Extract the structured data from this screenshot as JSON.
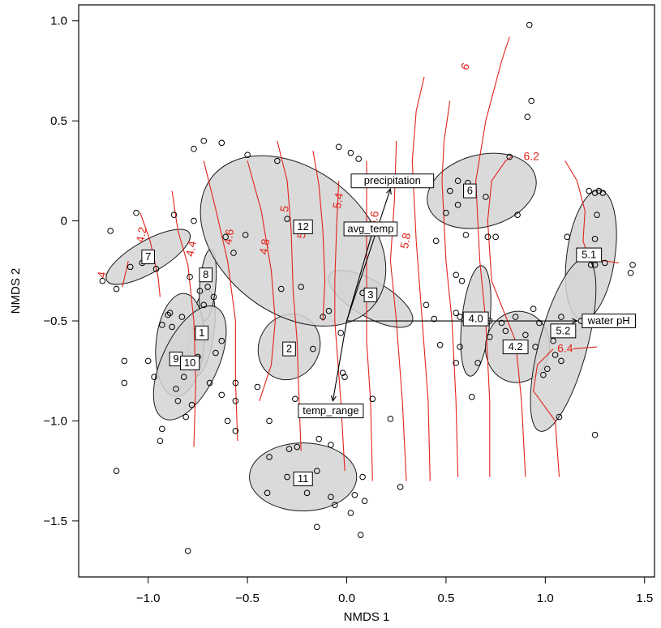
{
  "chart_data": {
    "type": "scatter",
    "xlabel": "NMDS 1",
    "ylabel": "NMDS 2",
    "xlim": [
      -1.35,
      1.55
    ],
    "ylim": [
      -1.78,
      1.08
    ],
    "xticks": [
      -1.0,
      -0.5,
      0.0,
      0.5,
      1.0,
      1.5
    ],
    "xtick_labels": [
      "−1.0",
      "−0.5",
      "0.0",
      "0.5",
      "1.0",
      "1.5"
    ],
    "yticks": [
      -1.5,
      -1.0,
      -0.5,
      0.0,
      0.5,
      1.0
    ],
    "ytick_labels": [
      "−1.5",
      "−1.0",
      "−0.5",
      "0",
      "0.5",
      "1.0"
    ],
    "grid": false,
    "colors": {
      "points": "#000000",
      "ellipse_fill": "#d3d3d3",
      "ellipse_stroke": "#1a1a1a",
      "contour": "#e2231a",
      "vector": "#000000"
    },
    "points": [
      [
        0.92,
        0.98
      ],
      [
        0.93,
        0.6
      ],
      [
        0.91,
        0.52
      ],
      [
        -0.72,
        0.4
      ],
      [
        -0.63,
        0.39
      ],
      [
        -0.77,
        0.36
      ],
      [
        -0.04,
        0.37
      ],
      [
        0.02,
        0.34
      ],
      [
        0.06,
        0.31
      ],
      [
        -0.5,
        0.33
      ],
      [
        -0.35,
        0.3
      ],
      [
        0.82,
        0.32
      ],
      [
        0.56,
        0.2
      ],
      [
        0.61,
        0.19
      ],
      [
        0.52,
        0.15
      ],
      [
        0.7,
        0.12
      ],
      [
        0.56,
        0.08
      ],
      [
        1.22,
        0.15
      ],
      [
        1.27,
        0.15
      ],
      [
        1.29,
        0.14
      ],
      [
        1.25,
        0.14
      ],
      [
        1.26,
        0.03
      ],
      [
        0.5,
        0.04
      ],
      [
        0.86,
        0.03
      ],
      [
        -0.77,
        -0.0
      ],
      [
        -0.87,
        0.03
      ],
      [
        -0.3,
        0.01
      ],
      [
        -0.51,
        -0.07
      ],
      [
        -1.06,
        0.04
      ],
      [
        -1.19,
        -0.05
      ],
      [
        0.45,
        -0.1
      ],
      [
        0.6,
        -0.07
      ],
      [
        0.71,
        -0.08
      ],
      [
        0.75,
        -0.08
      ],
      [
        1.11,
        -0.08
      ],
      [
        1.25,
        -0.09
      ],
      [
        -1.03,
        -0.21
      ],
      [
        -1.09,
        -0.23
      ],
      [
        -0.96,
        -0.24
      ],
      [
        -0.79,
        -0.28
      ],
      [
        -0.61,
        -0.08
      ],
      [
        -0.57,
        -0.16
      ],
      [
        1.23,
        -0.22
      ],
      [
        1.25,
        -0.22
      ],
      [
        1.3,
        -0.21
      ],
      [
        1.44,
        -0.22
      ],
      [
        1.43,
        -0.26
      ],
      [
        0.55,
        -0.27
      ],
      [
        0.58,
        -0.3
      ],
      [
        -0.7,
        -0.33
      ],
      [
        -0.74,
        -0.35
      ],
      [
        -0.67,
        -0.38
      ],
      [
        -0.23,
        -0.33
      ],
      [
        -0.33,
        -0.34
      ],
      [
        0.12,
        -0.36
      ],
      [
        0.08,
        -0.36
      ],
      [
        -1.16,
        -0.34
      ],
      [
        -1.23,
        -0.3
      ],
      [
        0.4,
        -0.42
      ],
      [
        0.55,
        -0.46
      ],
      [
        0.44,
        -0.49
      ],
      [
        0.57,
        -0.48
      ],
      [
        0.62,
        -0.48
      ],
      [
        0.6,
        -0.5
      ],
      [
        0.72,
        -0.5
      ],
      [
        0.78,
        -0.51
      ],
      [
        0.85,
        -0.48
      ],
      [
        0.94,
        -0.44
      ],
      [
        0.97,
        -0.51
      ],
      [
        1.08,
        -0.48
      ],
      [
        1.18,
        -0.5
      ],
      [
        1.24,
        -0.5
      ],
      [
        -0.72,
        -0.42
      ],
      [
        -0.83,
        -0.48
      ],
      [
        -0.88,
        -0.53
      ],
      [
        -0.9,
        -0.47
      ],
      [
        -0.89,
        -0.46
      ],
      [
        -0.93,
        -0.52
      ],
      [
        -0.75,
        -0.54
      ],
      [
        -0.63,
        -0.6
      ],
      [
        -0.28,
        -0.62
      ],
      [
        -0.17,
        -0.64
      ],
      [
        -0.03,
        -0.56
      ],
      [
        0.47,
        -0.62
      ],
      [
        0.57,
        -0.63
      ],
      [
        0.72,
        -0.58
      ],
      [
        0.8,
        -0.55
      ],
      [
        0.9,
        -0.57
      ],
      [
        0.95,
        -0.63
      ],
      [
        1.04,
        -0.6
      ],
      [
        -1.0,
        -0.7
      ],
      [
        -1.12,
        -0.7
      ],
      [
        -1.12,
        -0.81
      ],
      [
        -0.66,
        -0.66
      ],
      [
        -0.75,
        -0.68
      ],
      [
        -0.97,
        -0.78
      ],
      [
        -0.86,
        -0.84
      ],
      [
        -0.82,
        -0.78
      ],
      [
        -0.69,
        -0.81
      ],
      [
        -0.63,
        -0.87
      ],
      [
        -0.56,
        -0.81
      ],
      [
        -0.56,
        -0.9
      ],
      [
        -0.45,
        -0.83
      ],
      [
        -0.02,
        -0.76
      ],
      [
        -0.01,
        -0.78
      ],
      [
        0.55,
        -0.71
      ],
      [
        0.66,
        -0.71
      ],
      [
        0.63,
        -0.88
      ],
      [
        0.99,
        -0.77
      ],
      [
        1.01,
        -0.74
      ],
      [
        1.05,
        -0.67
      ],
      [
        1.08,
        -0.7
      ],
      [
        -0.93,
        -1.04
      ],
      [
        -0.94,
        -1.1
      ],
      [
        -0.81,
        -0.98
      ],
      [
        -0.85,
        -0.9
      ],
      [
        -0.78,
        -0.92
      ],
      [
        -0.6,
        -1.0
      ],
      [
        -0.56,
        -1.05
      ],
      [
        -0.39,
        -1.0
      ],
      [
        -0.26,
        -0.89
      ],
      [
        -0.25,
        -1.13
      ],
      [
        -0.29,
        -1.14
      ],
      [
        -0.14,
        -1.09
      ],
      [
        -0.08,
        -1.12
      ],
      [
        0.13,
        -0.89
      ],
      [
        0.22,
        -0.99
      ],
      [
        1.07,
        -0.98
      ],
      [
        1.25,
        -1.07
      ],
      [
        -0.39,
        -1.18
      ],
      [
        -0.4,
        -1.36
      ],
      [
        -0.3,
        -1.28
      ],
      [
        -0.15,
        -1.25
      ],
      [
        -0.2,
        -1.36
      ],
      [
        -0.08,
        -1.38
      ],
      [
        0.08,
        -1.28
      ],
      [
        0.09,
        -1.4
      ],
      [
        0.04,
        -1.37
      ],
      [
        0.02,
        -1.46
      ],
      [
        -0.06,
        -1.42
      ],
      [
        -0.15,
        -1.53
      ],
      [
        0.07,
        -1.57
      ],
      [
        0.27,
        -1.33
      ],
      [
        -1.16,
        -1.25
      ],
      [
        -0.8,
        -1.65
      ],
      [
        -0.12,
        -0.48
      ],
      [
        -0.09,
        -0.45
      ]
    ],
    "groups": [
      {
        "label": "1",
        "cx": -0.73,
        "cy": -0.56,
        "rx": 0.22,
        "ry": 0.06,
        "angle": 82,
        "lx": -0.73,
        "ly": -0.56
      },
      {
        "label": "2",
        "cx": -0.29,
        "cy": -0.63,
        "rx": 0.17,
        "ry": 0.15,
        "angle": 60,
        "lx": -0.29,
        "ly": -0.64
      },
      {
        "label": "3",
        "cx": 0.12,
        "cy": -0.39,
        "rx": 0.24,
        "ry": 0.09,
        "angle": -30,
        "lx": 0.12,
        "ly": -0.37
      },
      {
        "label": "4.0",
        "cx": 0.65,
        "cy": -0.5,
        "rx": 0.28,
        "ry": 0.07,
        "angle": 84,
        "lx": 0.65,
        "ly": -0.49
      },
      {
        "label": "4.2",
        "cx": 0.86,
        "cy": -0.63,
        "rx": 0.18,
        "ry": 0.16,
        "angle": 82,
        "lx": 0.85,
        "ly": -0.63
      },
      {
        "label": "5.1",
        "cx": 1.23,
        "cy": -0.17,
        "rx": 0.33,
        "ry": 0.12,
        "angle": 82,
        "lx": 1.22,
        "ly": -0.17
      },
      {
        "label": "5.2",
        "cx": 1.09,
        "cy": -0.62,
        "rx": 0.45,
        "ry": 0.12,
        "angle": 75,
        "lx": 1.09,
        "ly": -0.55
      },
      {
        "label": "6",
        "cx": 0.68,
        "cy": 0.15,
        "rx": 0.28,
        "ry": 0.18,
        "angle": 15,
        "lx": 0.62,
        "ly": 0.15
      },
      {
        "label": "7",
        "cx": -1.0,
        "cy": -0.18,
        "rx": 0.24,
        "ry": 0.08,
        "angle": 30,
        "lx": -1.0,
        "ly": -0.18
      },
      {
        "label": "8",
        "cx": -0.7,
        "cy": -0.32,
        "rx": 0.18,
        "ry": 0.04,
        "angle": 85,
        "lx": -0.71,
        "ly": -0.27
      },
      {
        "label": "9",
        "cx": -0.84,
        "cy": -0.62,
        "rx": 0.26,
        "ry": 0.12,
        "angle": 85,
        "lx": -0.86,
        "ly": -0.69
      },
      {
        "label": "10",
        "cx": -0.79,
        "cy": -0.71,
        "rx": 0.31,
        "ry": 0.14,
        "angle": 65,
        "lx": -0.79,
        "ly": -0.71
      },
      {
        "label": "11",
        "cx": -0.22,
        "cy": -1.28,
        "rx": 0.27,
        "ry": 0.17,
        "angle": 0,
        "lx": -0.22,
        "ly": -1.29
      },
      {
        "label": "12",
        "cx": -0.27,
        "cy": -0.1,
        "rx": 0.52,
        "ry": 0.36,
        "angle": -38,
        "lx": -0.22,
        "ly": -0.03
      }
    ],
    "vectors": [
      {
        "label": "precipitation",
        "x": 0.22,
        "y": 0.16,
        "lx": 0.23,
        "ly": 0.2
      },
      {
        "label": "avg_temp",
        "x": 0.14,
        "y": -0.02,
        "lx": 0.12,
        "ly": -0.04
      },
      {
        "label": "temp_range",
        "x": -0.07,
        "y": -0.9,
        "lx": -0.08,
        "ly": -0.95
      },
      {
        "label": "water pH",
        "x": 1.16,
        "y": -0.5,
        "lx": 1.32,
        "ly": -0.5
      }
    ],
    "vector_origin": [
      0.0,
      -0.5
    ],
    "contours": [
      {
        "label": "4",
        "pts": [
          [
            -1.13,
            -0.33
          ],
          [
            -1.1,
            -0.2
          ]
        ],
        "lx": -1.23,
        "ly": -0.27,
        "angle": -80
      },
      {
        "label": "4.2",
        "pts": [
          [
            -0.94,
            -0.38
          ],
          [
            -0.95,
            -0.28
          ],
          [
            -0.99,
            -0.1
          ],
          [
            -1.04,
            0.04
          ]
        ],
        "lx": -1.03,
        "ly": -0.07,
        "angle": -80
      },
      {
        "label": "4.4",
        "pts": [
          [
            -0.77,
            -1.13
          ],
          [
            -0.76,
            -0.8
          ],
          [
            -0.77,
            -0.5
          ],
          [
            -0.8,
            -0.22
          ],
          [
            -0.85,
            -0.05
          ],
          [
            -0.88,
            0.15
          ]
        ],
        "lx": -0.78,
        "ly": -0.14,
        "angle": -80
      },
      {
        "label": "4.6",
        "pts": [
          [
            -0.55,
            -1.1
          ],
          [
            -0.56,
            -0.8
          ],
          [
            -0.56,
            -0.5
          ],
          [
            -0.6,
            -0.2
          ],
          [
            -0.66,
            0.06
          ],
          [
            -0.72,
            0.3
          ]
        ],
        "lx": -0.59,
        "ly": -0.08,
        "angle": -80
      },
      {
        "label": "4.8",
        "pts": [
          [
            -0.44,
            -0.9
          ],
          [
            -0.38,
            -0.72
          ],
          [
            -0.36,
            -0.5
          ],
          [
            -0.38,
            -0.25
          ],
          [
            -0.43,
            0.05
          ],
          [
            -0.5,
            0.3
          ]
        ],
        "lx": -0.41,
        "ly": -0.13,
        "angle": -80
      },
      {
        "label": "5",
        "pts": [
          [
            -0.23,
            -1.15
          ],
          [
            -0.24,
            -0.9
          ],
          [
            -0.25,
            -0.6
          ],
          [
            -0.27,
            -0.35
          ],
          [
            -0.28,
            -0.05
          ],
          [
            -0.3,
            0.2
          ],
          [
            -0.35,
            0.4
          ]
        ],
        "lx": -0.31,
        "ly": 0.06,
        "angle": -80
      },
      {
        "label": "5.2",
        "pts": [
          [
            -0.12,
            -0.5
          ],
          [
            -0.11,
            -0.3
          ],
          [
            -0.12,
            -0.05
          ],
          [
            -0.14,
            0.18
          ],
          [
            -0.17,
            0.35
          ]
        ],
        "lx": -0.22,
        "ly": -0.05,
        "angle": -80
      },
      {
        "label": "5.4",
        "pts": [
          [
            -0.01,
            -1.25
          ],
          [
            -0.03,
            -0.9
          ],
          [
            -0.06,
            -0.5
          ],
          [
            -0.06,
            -0.3
          ],
          [
            -0.05,
            0.0
          ],
          [
            -0.04,
            0.2
          ]
        ],
        "lx": -0.04,
        "ly": 0.1,
        "angle": -80
      },
      {
        "label": "5.6",
        "pts": [
          [
            0.13,
            -1.3
          ],
          [
            0.12,
            -0.9
          ],
          [
            0.1,
            -0.6
          ],
          [
            0.1,
            -0.3
          ],
          [
            0.1,
            0.0
          ],
          [
            0.1,
            0.3
          ]
        ],
        "lx": 0.14,
        "ly": 0.01,
        "angle": -80
      },
      {
        "label": "5.8",
        "pts": [
          [
            0.3,
            -1.3
          ],
          [
            0.28,
            -0.9
          ],
          [
            0.25,
            -0.5
          ],
          [
            0.22,
            -0.2
          ],
          [
            0.24,
            0.1
          ],
          [
            0.25,
            0.4
          ]
        ],
        "lx": 0.3,
        "ly": -0.1,
        "angle": -80
      },
      {
        "label": "",
        "pts": [
          [
            0.42,
            -1.3
          ],
          [
            0.41,
            -0.9
          ],
          [
            0.38,
            -0.5
          ],
          [
            0.35,
            -0.1
          ],
          [
            0.33,
            0.3
          ],
          [
            0.35,
            0.55
          ],
          [
            0.39,
            0.72
          ]
        ],
        "lx": 0,
        "ly": 0,
        "angle": 0
      },
      {
        "label": "",
        "pts": [
          [
            0.56,
            -1.28
          ],
          [
            0.55,
            -0.9
          ],
          [
            0.53,
            -0.5
          ],
          [
            0.5,
            -0.2
          ],
          [
            0.48,
            0.2
          ],
          [
            0.49,
            0.4
          ],
          [
            0.52,
            0.6
          ]
        ],
        "lx": 0,
        "ly": 0,
        "angle": 0
      },
      {
        "label": "6",
        "pts": [
          [
            0.72,
            -1.28
          ],
          [
            0.72,
            -0.9
          ],
          [
            0.7,
            -0.5
          ],
          [
            0.67,
            -0.2
          ],
          [
            0.65,
            0.2
          ],
          [
            0.7,
            0.5
          ],
          [
            0.78,
            0.8
          ],
          [
            0.82,
            0.92
          ]
        ],
        "lx": 0.6,
        "ly": 0.77,
        "angle": -65
      },
      {
        "label": "6.2",
        "pts": [
          [
            0.9,
            -1.28
          ],
          [
            0.88,
            -0.9
          ],
          [
            0.85,
            -0.6
          ],
          [
            0.73,
            -0.3
          ],
          [
            0.71,
            0.0
          ],
          [
            0.73,
            0.2
          ],
          [
            0.8,
            0.3
          ],
          [
            0.83,
            0.32
          ]
        ],
        "lx": 0.93,
        "ly": 0.32,
        "angle": 0
      },
      {
        "label": "6.4",
        "pts": [
          [
            1.07,
            -1.28
          ],
          [
            1.05,
            -1.0
          ],
          [
            0.94,
            -0.85
          ],
          [
            0.96,
            -0.72
          ],
          [
            1.04,
            -0.64
          ]
        ],
        "lx": 1.1,
        "ly": -0.64,
        "angle": 0
      },
      {
        "label": "",
        "pts": [
          [
            1.1,
            0.3
          ],
          [
            1.16,
            0.2
          ],
          [
            1.2,
            0.05
          ],
          [
            1.19,
            -0.1
          ],
          [
            1.22,
            -0.19
          ],
          [
            1.3,
            -0.2
          ],
          [
            1.37,
            -0.21
          ]
        ],
        "lx": 0,
        "ly": 0,
        "angle": 0
      },
      {
        "label": "",
        "pts": [
          [
            1.14,
            -0.64
          ],
          [
            1.26,
            -0.63
          ]
        ],
        "lx": 0,
        "ly": 0,
        "angle": 0
      }
    ]
  }
}
